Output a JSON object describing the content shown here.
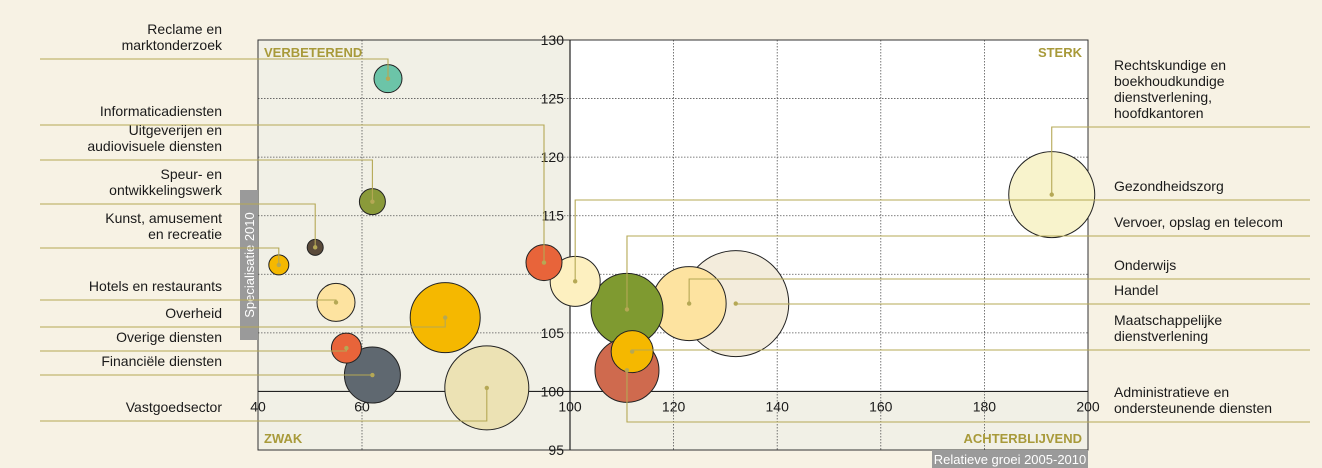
{
  "chart_data": {
    "type": "scatter",
    "subtype": "bubble",
    "xlabel": "Relatieve groei 2005-2010",
    "ylabel": "Specialisatie 2010",
    "xlim": [
      40,
      200
    ],
    "ylim": [
      95,
      130
    ],
    "x_ticks": [
      40,
      60,
      100,
      120,
      140,
      160,
      180,
      200
    ],
    "y_ticks": [
      95,
      100,
      105,
      110,
      115,
      120,
      125,
      130
    ],
    "grid": true,
    "quadrants": {
      "top_left": "VERBETEREND",
      "top_right": "STERK",
      "bottom_left": "ZWAK",
      "bottom_right": "ACHTERBLIJVEND"
    },
    "series": [
      {
        "label": "Reclame en marktonderzoek",
        "x": 65,
        "y": 126.7,
        "size": 14,
        "color": "#6cc4a8",
        "label_side": "left"
      },
      {
        "label": "Informaticadiensten",
        "x": 95,
        "y": 111,
        "size": 18,
        "color": "#e8643a",
        "label_side": "left"
      },
      {
        "label": "Uitgeverijen en audiovisuele diensten",
        "x": 62,
        "y": 116.2,
        "size": 13,
        "color": "#8a9a3a",
        "label_side": "left"
      },
      {
        "label": "Speur- en ontwikkelingswerk",
        "x": 51,
        "y": 112.3,
        "size": 8,
        "color": "#5a4a3a",
        "label_side": "left"
      },
      {
        "label": "Kunst, amusement en recreatie",
        "x": 44,
        "y": 110.8,
        "size": 10,
        "color": "#f5b800",
        "label_side": "left"
      },
      {
        "label": "Hotels en restaurants",
        "x": 55,
        "y": 107.6,
        "size": 19,
        "color": "#fde3a0",
        "label_side": "left"
      },
      {
        "label": "Overheid",
        "x": 76,
        "y": 106.3,
        "size": 35,
        "color": "#f5b800",
        "label_side": "left"
      },
      {
        "label": "Overige diensten",
        "x": 57,
        "y": 103.7,
        "size": 15,
        "color": "#e8643a",
        "label_side": "left"
      },
      {
        "label": "Financiële diensten",
        "x": 62,
        "y": 101.4,
        "size": 28,
        "color": "#5f6870",
        "label_side": "left"
      },
      {
        "label": "Vastgoedsector",
        "x": 84,
        "y": 100.3,
        "size": 42,
        "color": "#ece2b4",
        "label_side": "left"
      },
      {
        "label": "Rechtskundige en boekhoudkundige dienstverlening, hoofdkantoren",
        "x": 193,
        "y": 116.8,
        "size": 43,
        "color": "#f8f3cc",
        "label_side": "right"
      },
      {
        "label": "Gezondheidszorg",
        "x": 101,
        "y": 109.4,
        "size": 25,
        "color": "#fdf0c0",
        "label_side": "right"
      },
      {
        "label": "Vervoer, opslag en telecom",
        "x": 111,
        "y": 107,
        "size": 36,
        "color": "#7f9a30",
        "label_side": "right"
      },
      {
        "label": "Onderwijs",
        "x": 123,
        "y": 107.5,
        "size": 37,
        "color": "#fde3a0",
        "label_side": "right"
      },
      {
        "label": "Handel",
        "x": 132,
        "y": 107.5,
        "size": 53,
        "color": "#f3ecdc",
        "label_side": "right"
      },
      {
        "label": "Maatschappelijke dienstverlening",
        "x": 112,
        "y": 103.4,
        "size": 21,
        "color": "#f5b800",
        "label_side": "right"
      },
      {
        "label": "Administratieve en ondersteunende diensten",
        "x": 111,
        "y": 101.8,
        "size": 32,
        "color": "#cf6a4e",
        "label_side": "right"
      }
    ]
  },
  "labels": {
    "left": [
      {
        "lines": [
          "Reclame en",
          "marktonderzoek"
        ]
      },
      {
        "lines": [
          "Informaticadiensten"
        ]
      },
      {
        "lines": [
          "Uitgeverijen en",
          "audiovisuele diensten"
        ]
      },
      {
        "lines": [
          "Speur- en",
          "ontwikkelingswerk"
        ]
      },
      {
        "lines": [
          "Kunst, amusement",
          "en recreatie"
        ]
      },
      {
        "lines": [
          "Hotels en restaurants"
        ]
      },
      {
        "lines": [
          "Overheid"
        ]
      },
      {
        "lines": [
          "Overige diensten"
        ]
      },
      {
        "lines": [
          "Financiële diensten"
        ]
      },
      {
        "lines": [
          "Vastgoedsector"
        ]
      }
    ],
    "right": [
      {
        "lines": [
          "Rechtskundige en",
          "boekhoudkundige",
          "dienstverlening,",
          "hoofdkantoren"
        ]
      },
      {
        "lines": [
          "Gezondheidszorg"
        ]
      },
      {
        "lines": [
          "Vervoer, opslag en telecom"
        ]
      },
      {
        "lines": [
          "Onderwijs"
        ]
      },
      {
        "lines": [
          "Handel"
        ]
      },
      {
        "lines": [
          "Maatschappelijke",
          "dienstverlening"
        ]
      },
      {
        "lines": [
          "Administratieve en",
          "ondersteunende diensten"
        ]
      }
    ]
  },
  "colors": {
    "background": "#f7f2e4",
    "plot_background": "#ffffff",
    "shaded_region": "#f1f0e6",
    "leader_line": "#b5a855",
    "quadrant_text": "#a89a3a",
    "axis_title_bg": "#9a9a9a"
  }
}
